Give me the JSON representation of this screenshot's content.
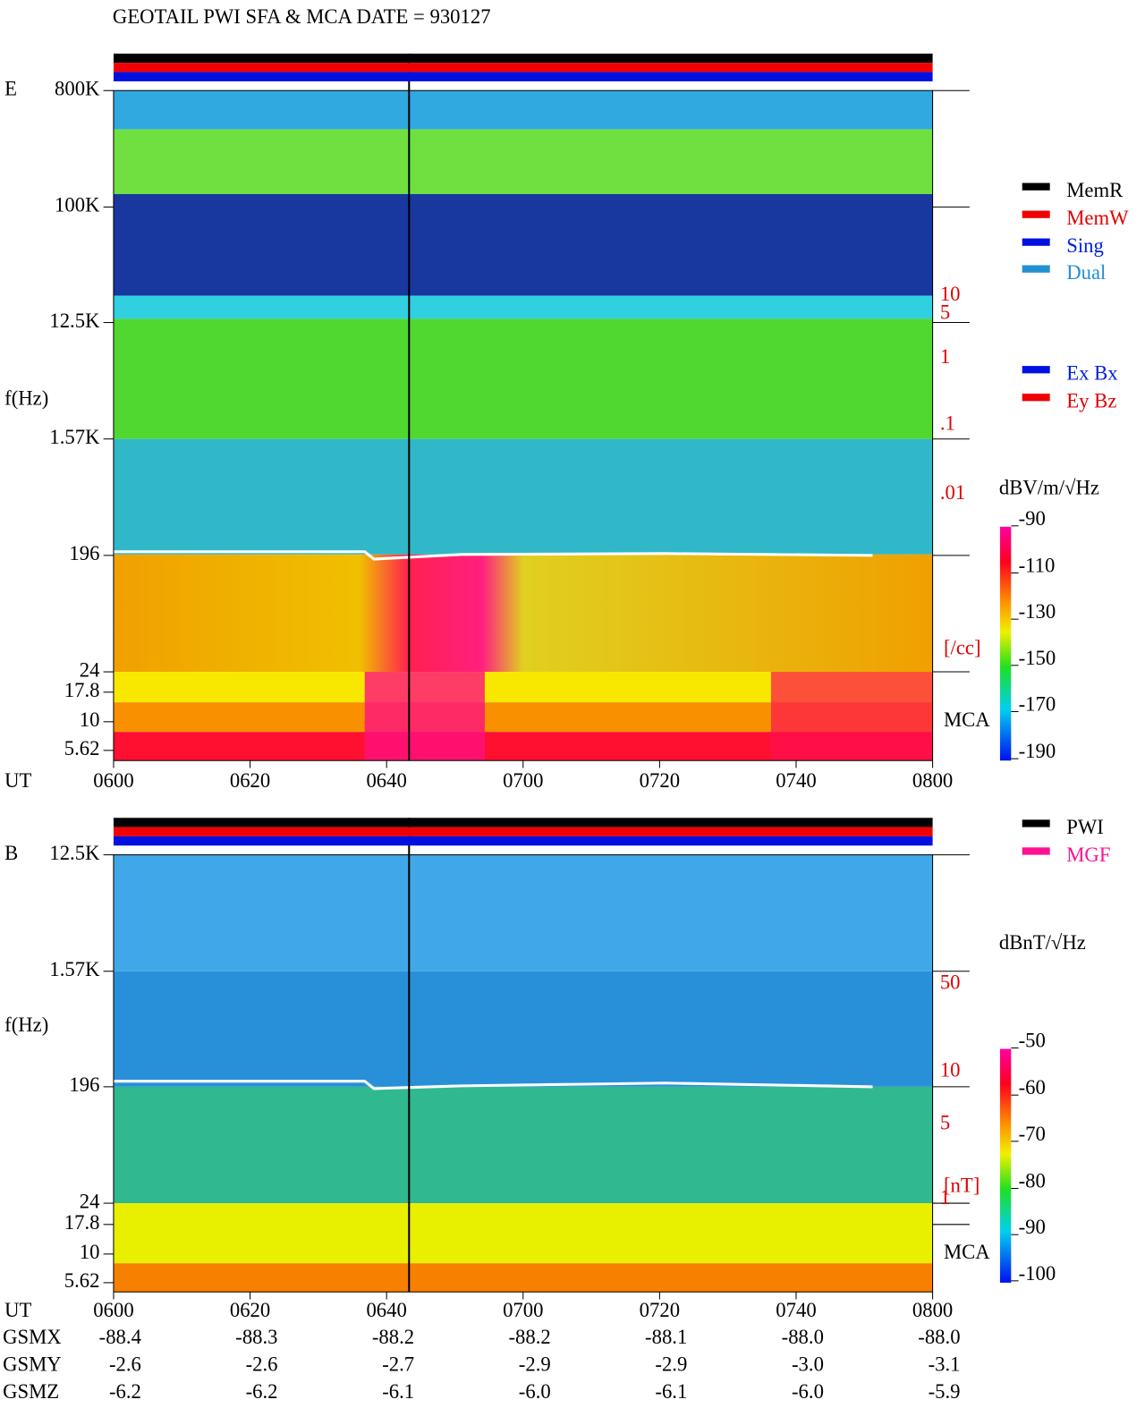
{
  "header": {
    "title": "GEOTAIL  PWI SFA & MCA   DATE = 930127"
  },
  "panels": [
    {
      "label": "E",
      "y_axis_label": "f(Hz)",
      "yticks": [
        "800K",
        "100K",
        "12.5K",
        "1.57K",
        "196",
        "24",
        "17.8",
        "10",
        "5.62"
      ],
      "x_axis_label": "UT",
      "xticks": [
        "0600",
        "0620",
        "0640",
        "0700",
        "0720",
        "0740",
        "0800"
      ],
      "right_scale": [
        "10",
        "5",
        "1",
        ".1",
        ".01"
      ],
      "right_unit": "[/cc]",
      "mca_label": "MCA",
      "colorbar": {
        "unit": "dBV/m/√Hz",
        "ticks": [
          "-90",
          "-110",
          "-130",
          "-150",
          "-170",
          "-190"
        ]
      }
    },
    {
      "label": "B",
      "y_axis_label": "f(Hz)",
      "yticks": [
        "12.5K",
        "1.57K",
        "196",
        "24",
        "17.8",
        "10",
        "5.62"
      ],
      "x_axis_label": "UT",
      "xticks": [
        "0600",
        "0620",
        "0640",
        "0700",
        "0720",
        "0740",
        "0800"
      ],
      "right_scale": [
        "50",
        "10",
        "5",
        "1"
      ],
      "right_unit": "[nT]",
      "mca_label": "MCA",
      "colorbar": {
        "unit": "dBnT/√Hz",
        "ticks": [
          "-50",
          "-60",
          "-70",
          "-80",
          "-90",
          "-100"
        ]
      }
    }
  ],
  "legend": {
    "mode": [
      "MemR",
      "MemW",
      "Sing",
      "Dual"
    ],
    "antenna": [
      "Ex Bx",
      "Ey Bz"
    ],
    "source": [
      "PWI",
      "MGF"
    ]
  },
  "orbit": {
    "rows": [
      {
        "name": "GSMX",
        "values": [
          "-88.4",
          "-88.3",
          "-88.2",
          "-88.2",
          "-88.1",
          "-88.0",
          "-88.0"
        ]
      },
      {
        "name": "GSMY",
        "values": [
          "-2.6",
          "-2.6",
          "-2.7",
          "-2.9",
          "-2.9",
          "-3.0",
          "-3.1"
        ]
      },
      {
        "name": "GSMZ",
        "values": [
          "-6.2",
          "-6.2",
          "-6.1",
          "-6.0",
          "-6.1",
          "-6.0",
          "-5.9"
        ]
      }
    ]
  }
}
